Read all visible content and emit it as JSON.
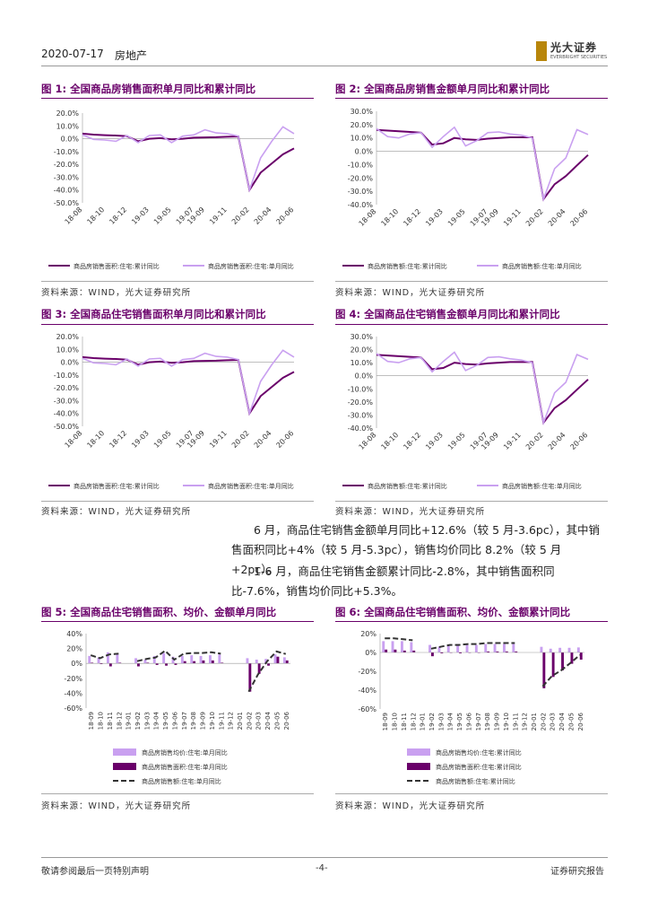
{
  "header": {
    "date": "2020-07-17",
    "sector": "房地产",
    "logo_name": "光大证券",
    "logo_en": "EVERBRIGHT SECURITIES"
  },
  "colors": {
    "dark": "#6a006a",
    "light": "#c9a0f0",
    "title": "#6a006a"
  },
  "figures": [
    {
      "title": "图 1:  全国商品房销售面积单月同比和累计同比",
      "source": "资料来源：WIND，光大证券研究所"
    },
    {
      "title": "图 2:  全国商品房销售金额单月同比和累计同比",
      "source": "资料来源：WIND，光大证券研究所"
    },
    {
      "title": "图 3:  全国商品住宅销售面积单月同比和累计同比",
      "source": "资料来源：WIND，光大证券研究所"
    },
    {
      "title": "图 4:  全国商品住宅销售金额单月同比和累计同比",
      "source": "资料来源：WIND，光大证券研究所"
    },
    {
      "title": "图 5:  全国商品住宅销售面积、均价、金额单月同比",
      "source": "资料来源：WIND，光大证券研究所"
    },
    {
      "title": "图 6:  全国商品住宅销售面积、均价、金额累计同比",
      "source": "资料来源：WIND，光大证券研究所"
    }
  ],
  "paragraphs": [
    "6 月，商品住宅销售金额单月同比+12.6%（较 5 月-3.6pc），其中销售面积同比+4%（较 5 月-5.3pc），销售均价同比 8.2%（较 5 月+2pc）。",
    "1-6 月，商品住宅销售金额累计同比-2.8%，其中销售面积同比-7.6%，销售均价同比+5.3%。"
  ],
  "footer": {
    "left": "敬请参阅最后一页特别声明",
    "center": "-4-",
    "right": "证券研究报告"
  },
  "chart_data": [
    {
      "type": "line",
      "title": "图 1:  全国商品房销售面积单月同比和累计同比",
      "x_ticks": [
        "18-08",
        "18-10",
        "18-12",
        "19-03",
        "19-05",
        "19-07",
        "19-09",
        "19-11",
        "20-02",
        "20-04",
        "20-06"
      ],
      "ylim": [
        -50,
        20
      ],
      "y_ticks": [
        "20.0%",
        "10.0%",
        "0.0%",
        "-10.0%",
        "-20.0%",
        "-30.0%",
        "-40.0%",
        "-50.0%"
      ],
      "series": [
        {
          "name": "商品房销售面积:住宅:累计同比",
          "color": "dark",
          "values": [
            4,
            3.2,
            2.8,
            2.5,
            2,
            -2,
            0,
            0.5,
            -0.5,
            0,
            0.8,
            1,
            1.2,
            1.5,
            1.8,
            -39.9,
            -26.5,
            -19.3,
            -12.2,
            -7.6
          ]
        },
        {
          "name": "商品房销售面积:住宅:单月同比",
          "color": "light",
          "values": [
            3,
            -0.5,
            -1,
            -2,
            2.5,
            -3,
            2.5,
            3,
            -3,
            2,
            3,
            7,
            4.5,
            4,
            2,
            -39.9,
            -15,
            -2,
            9.3,
            4
          ]
        }
      ]
    },
    {
      "type": "line",
      "title": "图 2:  全国商品房销售金额单月同比和累计同比",
      "x_ticks": [
        "18-08",
        "18-10",
        "18-12",
        "19-03",
        "19-05",
        "19-07",
        "19-09",
        "19-11",
        "20-02",
        "20-04",
        "20-06"
      ],
      "ylim": [
        -40,
        30
      ],
      "y_ticks": [
        "30.0%",
        "20.0%",
        "10.0%",
        "0.0%",
        "-10.0%",
        "-20.0%",
        "-30.0%",
        "-40.0%"
      ],
      "series": [
        {
          "name": "商品房销售额:住宅:累计同比",
          "color": "dark",
          "values": [
            16,
            15.5,
            15,
            14.5,
            14,
            5,
            6,
            10,
            9,
            8.5,
            9.5,
            10,
            10.5,
            10.5,
            10.5,
            -35.9,
            -24.7,
            -18.6,
            -10.6,
            -2.8
          ]
        },
        {
          "name": "商品房销售额:住宅:单月同比",
          "color": "light",
          "values": [
            17,
            11,
            10,
            13,
            14,
            3,
            11,
            18,
            4,
            8,
            14,
            14.5,
            13,
            12,
            10,
            -35.9,
            -13,
            -5,
            16.2,
            12.6
          ]
        }
      ]
    },
    {
      "type": "line",
      "title": "图 3:  全国商品住宅销售面积单月同比和累计同比",
      "x_ticks": [
        "18-08",
        "18-10",
        "18-12",
        "19-03",
        "19-05",
        "19-07",
        "19-09",
        "19-11",
        "20-02",
        "20-04",
        "20-06"
      ],
      "ylim": [
        -50,
        20
      ],
      "y_ticks": [
        "20.0%",
        "10.0%",
        "0.0%",
        "-10.0%",
        "-20.0%",
        "-30.0%",
        "-40.0%",
        "-50.0%"
      ],
      "series": [
        {
          "name": "商品房销售面积:住宅:累计同比",
          "color": "dark",
          "values": [
            4,
            3.2,
            2.8,
            2.5,
            2,
            -2,
            0,
            0.5,
            -0.5,
            0,
            0.8,
            1,
            1.2,
            1.5,
            1.8,
            -39.9,
            -26.5,
            -19.3,
            -12.2,
            -7.6
          ]
        },
        {
          "name": "商品房销售面积:住宅:单月同比",
          "color": "light",
          "values": [
            3,
            -0.5,
            -1,
            -2,
            2.5,
            -3,
            2.5,
            3,
            -3,
            2,
            3,
            7,
            4.5,
            4,
            2,
            -39.9,
            -15,
            -2,
            9.3,
            4
          ]
        }
      ]
    },
    {
      "type": "line",
      "title": "图 4:  全国商品住宅销售金额单月同比和累计同比",
      "x_ticks": [
        "18-08",
        "18-10",
        "18-12",
        "19-03",
        "19-05",
        "19-07",
        "19-09",
        "19-11",
        "20-02",
        "20-04",
        "20-06"
      ],
      "ylim": [
        -40,
        30
      ],
      "y_ticks": [
        "30.0%",
        "20.0%",
        "10.0%",
        "0.0%",
        "-10.0%",
        "-20.0%",
        "-30.0%",
        "-40.0%"
      ],
      "series": [
        {
          "name": "商品房销售额:住宅:累计同比",
          "color": "dark",
          "values": [
            16,
            15.5,
            15,
            14.5,
            14,
            5,
            6,
            10,
            9,
            8.5,
            9.5,
            10,
            10.5,
            10.5,
            10.5,
            -35.9,
            -24.7,
            -18.6,
            -10.6,
            -2.8
          ]
        },
        {
          "name": "商品房销售额:住宅:单月同比",
          "color": "light",
          "values": [
            17,
            11,
            10,
            13,
            14,
            3,
            11,
            18,
            4,
            8,
            14,
            14.5,
            13,
            12,
            10,
            -35.9,
            -13,
            -5,
            16.2,
            12.6
          ]
        }
      ]
    },
    {
      "type": "bar",
      "title": "图 5:  全国商品住宅销售面积、均价、金额单月同比",
      "categories": [
        "18-09",
        "18-10",
        "18-11",
        "18-12",
        "19-01",
        "19-02",
        "19-03",
        "19-04",
        "19-05",
        "19-06",
        "19-07",
        "19-08",
        "19-09",
        "19-10",
        "19-11",
        "19-12",
        "20-01",
        "20-02",
        "20-03",
        "20-04",
        "20-05",
        "20-06"
      ],
      "ylim": [
        -60,
        40
      ],
      "y_ticks": [
        "40%",
        "20%",
        "0%",
        "-20%",
        "-40%",
        "-60%"
      ],
      "series": [
        {
          "name": "商品房销售均价:住宅:单月同比",
          "kind": "bar",
          "color": "light",
          "values": [
            10,
            8,
            15,
            14,
            null,
            7,
            5,
            10,
            14,
            9,
            10,
            11,
            10,
            11,
            12,
            null,
            null,
            7,
            5,
            6,
            12,
            8.2
          ]
        },
        {
          "name": "商品房销售面积:住宅:单月同比",
          "kind": "bar",
          "color": "dark",
          "values": [
            1,
            -1,
            -4,
            1,
            null,
            -4,
            1,
            -2,
            -3,
            -2,
            3,
            3,
            4,
            4,
            1,
            null,
            null,
            -38,
            -14,
            -3,
            9,
            4
          ]
        },
        {
          "name": "商品房销售额:住宅:单月同比",
          "kind": "line",
          "color": "#333333",
          "values": [
            11,
            7,
            12,
            13,
            null,
            3,
            6,
            8,
            17,
            5,
            13,
            14,
            14,
            15,
            13,
            null,
            null,
            -38,
            -15,
            3,
            16,
            12.6
          ]
        }
      ]
    },
    {
      "type": "bar",
      "title": "图 6:  全国商品住宅销售面积、均价、金额累计同比",
      "categories": [
        "18-09",
        "18-10",
        "18-11",
        "18-12",
        "19-01",
        "19-02",
        "19-03",
        "19-04",
        "19-05",
        "19-06",
        "19-07",
        "19-08",
        "19-09",
        "19-10",
        "19-11",
        "19-12",
        "20-01",
        "20-02",
        "20-03",
        "20-04",
        "20-05",
        "20-06"
      ],
      "ylim": [
        -60,
        20
      ],
      "y_ticks": [
        "20%",
        "0%",
        "-20%",
        "-40%",
        "-60%"
      ],
      "series": [
        {
          "name": "商品房销售均价:住宅:累计同比",
          "kind": "bar",
          "color": "light",
          "values": [
            12,
            12,
            12,
            11,
            null,
            8,
            6,
            8,
            9,
            8,
            8,
            9,
            9,
            9,
            9,
            null,
            null,
            6,
            4,
            5,
            5,
            5.3
          ]
        },
        {
          "name": "商品房销售面积:住宅:累计同比",
          "kind": "bar",
          "color": "dark",
          "values": [
            3,
            3,
            2,
            2,
            null,
            -4,
            -1,
            0,
            -1,
            0,
            0,
            1,
            1,
            1,
            1,
            null,
            null,
            -38,
            -26,
            -19,
            -12,
            -7.6
          ]
        },
        {
          "name": "商品房销售额:住宅:累计同比",
          "kind": "line",
          "color": "#333333",
          "values": [
            15,
            15,
            14,
            13,
            null,
            4,
            6,
            8,
            8,
            9,
            9,
            10,
            10,
            10,
            10,
            null,
            null,
            -36,
            -25,
            -19,
            -11,
            -2.8
          ]
        }
      ]
    }
  ]
}
